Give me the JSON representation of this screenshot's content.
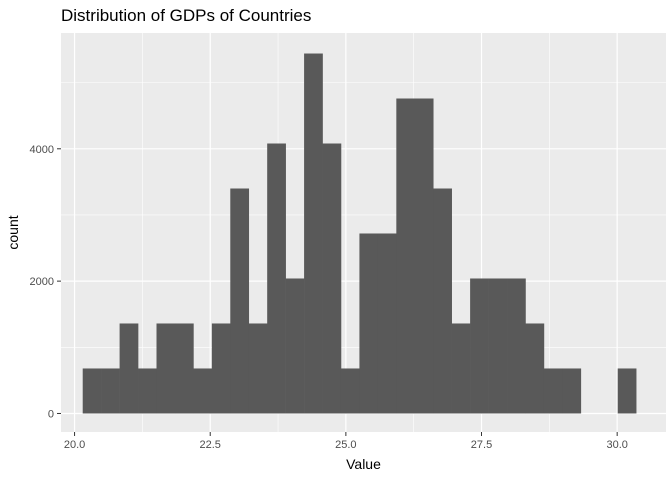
{
  "chart_data": {
    "type": "bar",
    "title": "Distribution of GDPs of Countries",
    "xlabel": "Value",
    "ylabel": "count",
    "xlim": [
      19.75,
      30.9
    ],
    "ylim": [
      -280,
      5750
    ],
    "x_ticks": [
      20.0,
      22.5,
      25.0,
      27.5,
      30.0
    ],
    "x_tick_labels": [
      "20.0",
      "22.5",
      "25.0",
      "27.5",
      "30.0"
    ],
    "y_ticks": [
      0,
      2000,
      4000
    ],
    "y_tick_labels": [
      "0",
      "2000",
      "4000"
    ],
    "x_minor_ticks": [
      21.25,
      23.75,
      26.25,
      28.75
    ],
    "y_minor_ticks": [
      1000,
      3000,
      5000
    ],
    "grid": true,
    "legend": "none",
    "panel_background": "#ebebeb",
    "grid_color": "#ffffff",
    "bar_color": "#595959",
    "bins": [
      {
        "x0": 20.15,
        "x1": 20.49,
        "count": 680
      },
      {
        "x0": 20.49,
        "x1": 20.83,
        "count": 680
      },
      {
        "x0": 20.83,
        "x1": 21.17,
        "count": 1360
      },
      {
        "x0": 21.17,
        "x1": 21.51,
        "count": 680
      },
      {
        "x0": 21.51,
        "x1": 21.85,
        "count": 1360
      },
      {
        "x0": 21.85,
        "x1": 22.19,
        "count": 1360
      },
      {
        "x0": 22.19,
        "x1": 22.53,
        "count": 680
      },
      {
        "x0": 22.53,
        "x1": 22.87,
        "count": 1360
      },
      {
        "x0": 22.87,
        "x1": 23.21,
        "count": 3400
      },
      {
        "x0": 23.21,
        "x1": 23.55,
        "count": 1360
      },
      {
        "x0": 23.55,
        "x1": 23.89,
        "count": 4080
      },
      {
        "x0": 23.89,
        "x1": 24.23,
        "count": 2040
      },
      {
        "x0": 24.23,
        "x1": 24.57,
        "count": 5440
      },
      {
        "x0": 24.57,
        "x1": 24.91,
        "count": 4080
      },
      {
        "x0": 24.91,
        "x1": 25.25,
        "count": 680
      },
      {
        "x0": 25.25,
        "x1": 25.59,
        "count": 2720
      },
      {
        "x0": 25.59,
        "x1": 25.93,
        "count": 2720
      },
      {
        "x0": 25.93,
        "x1": 26.27,
        "count": 4760
      },
      {
        "x0": 26.27,
        "x1": 26.61,
        "count": 4760
      },
      {
        "x0": 26.61,
        "x1": 26.95,
        "count": 3400
      },
      {
        "x0": 26.95,
        "x1": 27.29,
        "count": 1360
      },
      {
        "x0": 27.29,
        "x1": 27.63,
        "count": 2040
      },
      {
        "x0": 27.63,
        "x1": 27.97,
        "count": 2040
      },
      {
        "x0": 27.97,
        "x1": 28.31,
        "count": 2040
      },
      {
        "x0": 28.31,
        "x1": 28.65,
        "count": 1360
      },
      {
        "x0": 28.65,
        "x1": 28.99,
        "count": 680
      },
      {
        "x0": 28.99,
        "x1": 29.33,
        "count": 680
      },
      {
        "x0": 29.33,
        "x1": 29.67,
        "count": 0
      },
      {
        "x0": 29.67,
        "x1": 30.01,
        "count": 0
      },
      {
        "x0": 30.01,
        "x1": 30.35,
        "count": 680
      }
    ]
  }
}
